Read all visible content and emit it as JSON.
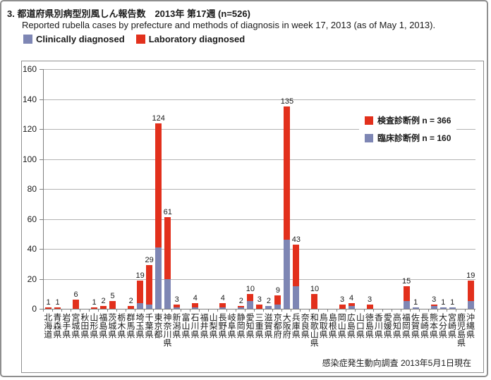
{
  "header": {
    "title": "3. 都道府県別病型別風しん報告数　2013年 第17週 (n=526)",
    "subtitle": "Reported rubella cases by prefecture and methods of diagnosis in week 17, 2013 (as of May 1, 2013)."
  },
  "legend": {
    "clinical_label": "Clinically diagnosed",
    "laboratory_label": "Laboratory diagnosed",
    "inner_laboratory_label": "検査診断例 n = 366",
    "inner_clinical_label": "臨床診断例 n = 160"
  },
  "footer": {
    "source_note": "感染症発生動向調査 2013年5月1日現在"
  },
  "colors": {
    "clinical": "#7e86b4",
    "laboratory": "#e2301c",
    "gridline": "#b3b3b3",
    "axis": "#7f7f7f"
  },
  "chart_data": {
    "type": "bar",
    "stacked": true,
    "title": "都道府県別病型別風しん報告数 2013年第17週 (n=526)",
    "xlabel": "",
    "ylabel": "",
    "ylim": [
      0,
      160
    ],
    "ytick_step": 20,
    "grid": true,
    "legend_position": "upper right",
    "value_labels": "bar totals shown above each non-zero bar",
    "categories": [
      "北海道",
      "青森県",
      "岩手県",
      "宮城県",
      "秋田県",
      "山形県",
      "福島県",
      "茨城県",
      "栃木県",
      "群馬県",
      "埼玉県",
      "千葉県",
      "東京都",
      "神奈川県",
      "新潟県",
      "富山県",
      "石川県",
      "福井県",
      "山梨県",
      "長野県",
      "岐阜県",
      "静岡県",
      "愛知県",
      "三重県",
      "滋賀県",
      "京都府",
      "大阪府",
      "兵庫県",
      "奈良県",
      "和歌山県",
      "鳥取県",
      "島根県",
      "岡山県",
      "広島県",
      "山口県",
      "徳島県",
      "香川県",
      "愛媛県",
      "高知県",
      "福岡県",
      "佐賀県",
      "長崎県",
      "熊本県",
      "大分県",
      "宮崎県",
      "鹿児島県",
      "沖縄県"
    ],
    "series": [
      {
        "name": "臨床診断例 (Clinically diagnosed)",
        "n": 160,
        "color": "#7e86b4",
        "values": [
          0,
          0,
          0,
          0,
          0,
          0,
          0,
          0,
          0,
          0,
          4,
          3,
          41,
          20,
          1,
          0,
          1,
          0,
          0,
          1,
          0,
          1,
          5,
          0,
          2,
          3,
          46,
          15,
          0,
          0,
          0,
          0,
          0,
          2,
          0,
          0,
          0,
          0,
          0,
          5,
          1,
          0,
          2,
          1,
          1,
          0,
          5
        ]
      },
      {
        "name": "検査診断例 (Laboratory diagnosed)",
        "n": 366,
        "color": "#e2301c",
        "values": [
          1,
          1,
          0,
          6,
          0,
          1,
          2,
          5,
          0,
          2,
          15,
          26,
          83,
          41,
          2,
          0,
          3,
          0,
          0,
          3,
          0,
          1,
          5,
          3,
          0,
          6,
          89,
          28,
          0,
          10,
          0,
          0,
          3,
          2,
          0,
          3,
          0,
          0,
          0,
          10,
          0,
          0,
          1,
          0,
          0,
          0,
          14
        ]
      }
    ],
    "totals": [
      1,
      1,
      0,
      6,
      0,
      1,
      2,
      5,
      0,
      2,
      19,
      29,
      124,
      61,
      3,
      0,
      4,
      0,
      0,
      4,
      0,
      2,
      10,
      3,
      2,
      9,
      135,
      43,
      0,
      10,
      0,
      0,
      3,
      4,
      0,
      3,
      0,
      0,
      0,
      15,
      1,
      0,
      3,
      1,
      1,
      0,
      19
    ]
  }
}
